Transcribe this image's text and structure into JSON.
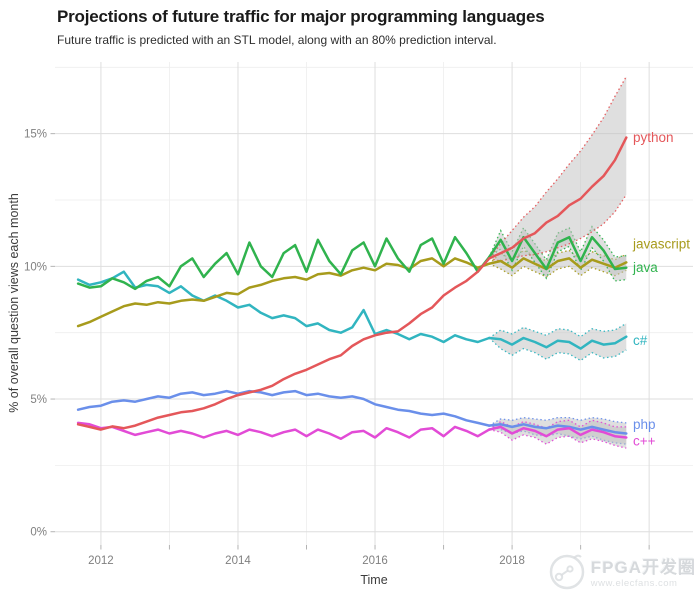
{
  "header": {
    "title": "Projections of future traffic for major programming languages",
    "subtitle": "Future traffic is predicted with an STL model, along with an 80% prediction interval."
  },
  "watermark": {
    "line1": "FPGA开发圈",
    "line2": "www.elecfans.com"
  },
  "chart_data": {
    "type": "line",
    "title": "Projections of future traffic for major programming languages",
    "subtitle": "Future traffic is predicted with an STL model, along with an 80% prediction interval.",
    "xlabel": "Time",
    "ylabel": "% of overall question views each month",
    "x_domain": [
      2011.33,
      2020.64
    ],
    "y_domain": [
      -0.5,
      17.7
    ],
    "x_major_ticks": [
      {
        "value": 2012,
        "label": "2012"
      },
      {
        "value": 2014,
        "label": "2014"
      },
      {
        "value": 2016,
        "label": "2016"
      },
      {
        "value": 2018,
        "label": "2018"
      }
    ],
    "x_axis_ticks": [
      2012,
      2013,
      2014,
      2015,
      2016,
      2017,
      2018,
      2019,
      2020
    ],
    "x_major_gridlines": [
      2012,
      2014,
      2016,
      2018,
      2020
    ],
    "x_minor_gridlines": [
      2013,
      2015,
      2017,
      2019
    ],
    "y_major_ticks": [
      {
        "value": 0,
        "label": "0%"
      },
      {
        "value": 5,
        "label": "5%"
      },
      {
        "value": 10,
        "label": "10%"
      },
      {
        "value": 15,
        "label": "15%"
      }
    ],
    "y_minor_gridlines": [
      2.5,
      7.5,
      12.5,
      17.5
    ],
    "grid": {
      "major_color": "#dedede",
      "minor_color": "#eeeeee"
    },
    "ribbon": {
      "fill": "#bfbfbf",
      "opacity": 0.5
    },
    "prediction_interval": "80%",
    "x_start": 2011.6667,
    "x_step": 0.1666667,
    "forecast_start_index": 36,
    "series": [
      {
        "name": "php",
        "label": "php",
        "color": "#6a8fea",
        "label_y": 4.05,
        "values": [
          4.6,
          4.7,
          4.75,
          4.9,
          4.95,
          4.9,
          5.0,
          5.1,
          5.05,
          5.2,
          5.25,
          5.15,
          5.2,
          5.3,
          5.2,
          5.3,
          5.25,
          5.15,
          5.25,
          5.3,
          5.15,
          5.2,
          5.1,
          5.05,
          5.1,
          5.0,
          4.8,
          4.7,
          4.6,
          4.55,
          4.45,
          4.4,
          4.45,
          4.35,
          4.2,
          4.1,
          4.0,
          4.05,
          3.95,
          4.05,
          3.95,
          3.9,
          4.0,
          3.95,
          3.85,
          3.95,
          3.85,
          3.75,
          3.7
        ],
        "ribbon_upper": [
          4.0,
          4.25,
          4.2,
          4.3,
          4.25,
          4.2,
          4.3,
          4.3,
          4.2,
          4.3,
          4.25,
          4.15,
          4.1
        ],
        "ribbon_lower": [
          4.0,
          3.85,
          3.7,
          3.8,
          3.65,
          3.6,
          3.7,
          3.6,
          3.5,
          3.6,
          3.45,
          3.35,
          3.3
        ]
      },
      {
        "name": "cpp",
        "label": "c++",
        "color": "#e24bd6",
        "label_y": 3.42,
        "values": [
          4.1,
          4.05,
          3.9,
          3.95,
          3.8,
          3.65,
          3.75,
          3.85,
          3.7,
          3.8,
          3.7,
          3.55,
          3.7,
          3.8,
          3.65,
          3.85,
          3.75,
          3.6,
          3.75,
          3.85,
          3.6,
          3.85,
          3.7,
          3.5,
          3.75,
          3.8,
          3.55,
          3.9,
          3.75,
          3.55,
          3.85,
          3.9,
          3.6,
          3.95,
          3.8,
          3.6,
          3.85,
          3.95,
          3.7,
          3.9,
          3.8,
          3.6,
          3.85,
          3.9,
          3.65,
          3.85,
          3.75,
          3.6,
          3.55
        ],
        "ribbon_upper": [
          3.85,
          4.15,
          3.95,
          4.15,
          4.05,
          3.9,
          4.15,
          4.2,
          3.95,
          4.2,
          4.1,
          3.95,
          3.95
        ],
        "ribbon_lower": [
          3.85,
          3.75,
          3.45,
          3.65,
          3.55,
          3.3,
          3.55,
          3.6,
          3.35,
          3.5,
          3.4,
          3.25,
          3.15
        ]
      },
      {
        "name": "csharp",
        "label": "c#",
        "color": "#31b5c0",
        "label_y": 7.2,
        "values": [
          9.5,
          9.3,
          9.4,
          9.55,
          9.8,
          9.2,
          9.3,
          9.25,
          9.0,
          9.25,
          8.9,
          8.7,
          8.9,
          8.7,
          8.45,
          8.55,
          8.25,
          8.05,
          8.15,
          8.05,
          7.75,
          7.85,
          7.6,
          7.5,
          7.7,
          8.35,
          7.45,
          7.6,
          7.45,
          7.25,
          7.45,
          7.35,
          7.15,
          7.4,
          7.25,
          7.15,
          7.3,
          7.25,
          7.05,
          7.3,
          7.15,
          6.95,
          7.2,
          7.15,
          6.9,
          7.2,
          7.05,
          7.1,
          7.35
        ],
        "ribbon_upper": [
          7.3,
          7.6,
          7.45,
          7.7,
          7.55,
          7.4,
          7.65,
          7.6,
          7.35,
          7.65,
          7.55,
          7.6,
          7.85
        ],
        "ribbon_lower": [
          7.3,
          6.9,
          6.65,
          6.9,
          6.75,
          6.5,
          6.75,
          6.7,
          6.45,
          6.75,
          6.55,
          6.6,
          6.85
        ]
      },
      {
        "name": "javascript",
        "label": "javascript",
        "color": "#a79b1c",
        "label_y": 10.85,
        "values": [
          7.75,
          7.9,
          8.1,
          8.3,
          8.5,
          8.6,
          8.55,
          8.65,
          8.6,
          8.7,
          8.75,
          8.7,
          8.85,
          9.0,
          8.95,
          9.2,
          9.3,
          9.45,
          9.55,
          9.6,
          9.5,
          9.7,
          9.75,
          9.65,
          9.85,
          9.95,
          9.85,
          10.1,
          10.05,
          9.9,
          10.2,
          10.3,
          10.0,
          10.3,
          10.15,
          9.95,
          10.1,
          10.2,
          9.95,
          10.3,
          10.1,
          9.9,
          10.2,
          10.3,
          9.95,
          10.25,
          10.1,
          9.95,
          10.15
        ],
        "ribbon_upper": [
          10.1,
          10.5,
          10.25,
          10.6,
          10.4,
          10.2,
          10.5,
          10.6,
          10.25,
          10.55,
          10.4,
          10.25,
          10.45
        ],
        "ribbon_lower": [
          10.1,
          9.9,
          9.65,
          10.0,
          9.8,
          9.6,
          9.9,
          10.0,
          9.65,
          9.95,
          9.8,
          9.65,
          9.85
        ]
      },
      {
        "name": "java",
        "label": "java",
        "color": "#30b34e",
        "label_y": 9.95,
        "values": [
          9.35,
          9.2,
          9.25,
          9.55,
          9.4,
          9.15,
          9.45,
          9.6,
          9.25,
          10.0,
          10.3,
          9.6,
          10.1,
          10.5,
          9.7,
          10.9,
          10.0,
          9.6,
          10.5,
          10.8,
          9.8,
          11.0,
          10.2,
          9.7,
          10.6,
          10.9,
          10.0,
          11.05,
          10.3,
          9.8,
          10.8,
          11.05,
          10.1,
          11.1,
          10.5,
          9.8,
          10.35,
          11.0,
          10.2,
          11.1,
          10.5,
          9.9,
          10.9,
          11.1,
          10.2,
          11.1,
          10.6,
          9.9,
          9.95
        ],
        "ribbon_upper": [
          10.35,
          11.35,
          10.55,
          11.45,
          10.85,
          10.25,
          11.25,
          11.45,
          10.55,
          11.5,
          11.0,
          10.35,
          10.4
        ],
        "ribbon_lower": [
          10.35,
          10.65,
          9.85,
          10.75,
          10.15,
          9.55,
          10.55,
          10.75,
          9.85,
          10.7,
          10.2,
          9.45,
          9.5
        ]
      },
      {
        "name": "python",
        "label": "python",
        "color": "#e4575a",
        "label_y": 14.85,
        "values": [
          4.05,
          3.95,
          3.85,
          3.97,
          3.9,
          4.0,
          4.15,
          4.3,
          4.4,
          4.5,
          4.55,
          4.65,
          4.8,
          5.0,
          5.15,
          5.25,
          5.35,
          5.5,
          5.75,
          5.95,
          6.1,
          6.3,
          6.5,
          6.65,
          7.0,
          7.25,
          7.4,
          7.5,
          7.55,
          7.85,
          8.2,
          8.45,
          8.9,
          9.2,
          9.45,
          9.8,
          10.3,
          10.5,
          10.7,
          11.05,
          11.25,
          11.65,
          11.9,
          12.3,
          12.55,
          13.0,
          13.4,
          14.0,
          14.85
        ],
        "ribbon_upper": [
          10.3,
          10.85,
          11.35,
          11.85,
          12.25,
          12.8,
          13.3,
          13.85,
          14.35,
          14.95,
          15.6,
          16.4,
          17.15
        ],
        "ribbon_lower": [
          10.3,
          10.2,
          10.3,
          10.4,
          10.45,
          10.55,
          10.7,
          10.85,
          11.05,
          11.3,
          11.6,
          12.05,
          12.7
        ]
      }
    ]
  }
}
